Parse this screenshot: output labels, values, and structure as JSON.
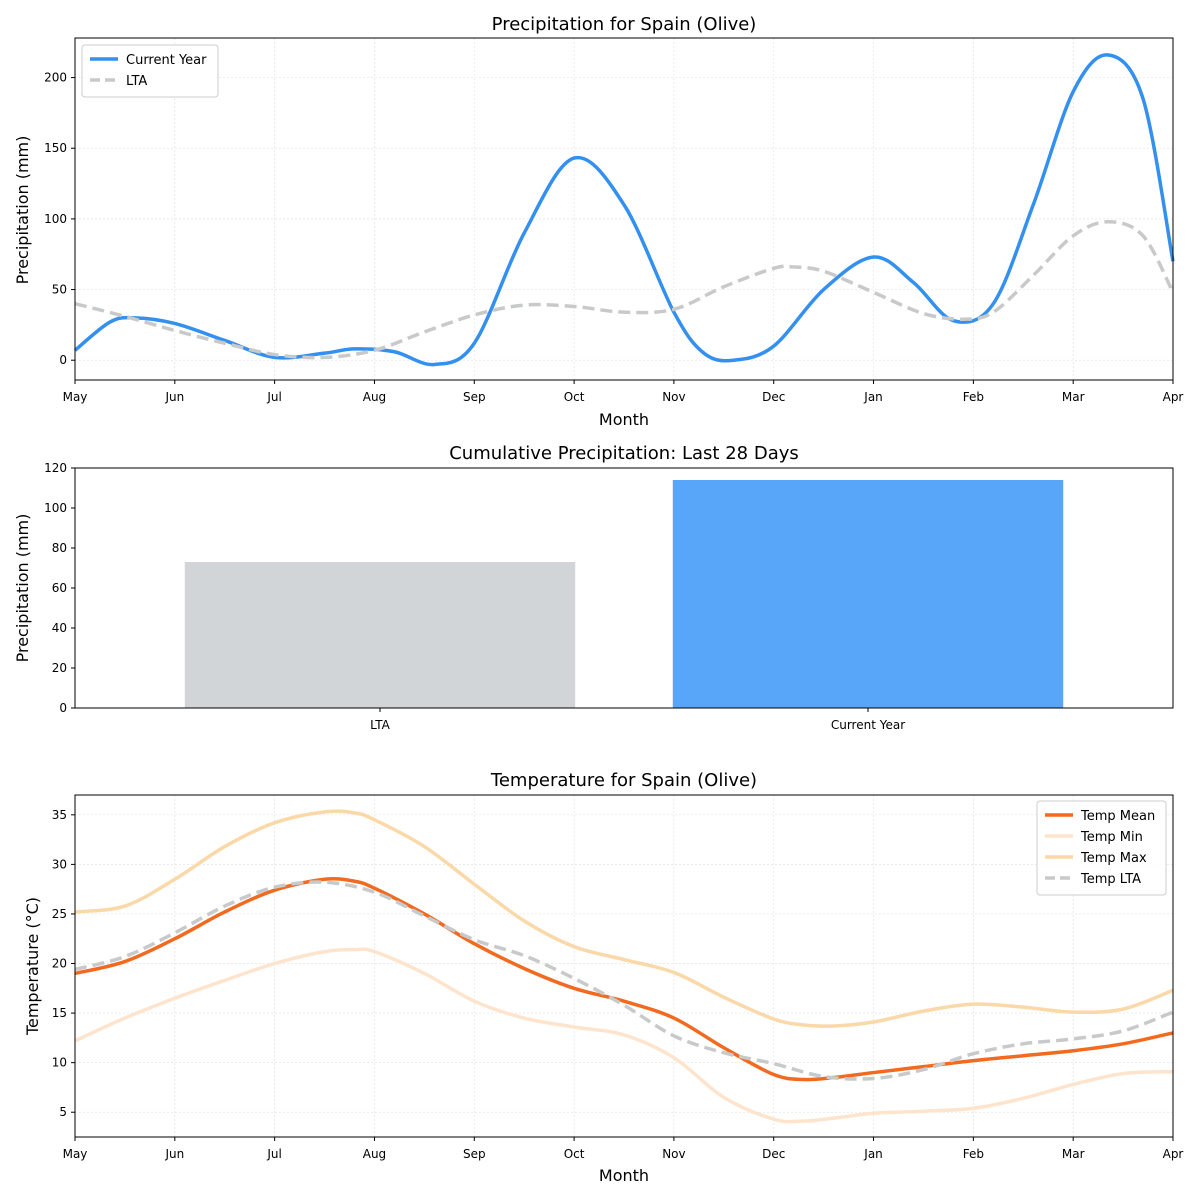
{
  "chart_data": [
    {
      "type": "line",
      "title": "Precipitation for Spain (Olive)",
      "xlabel": "Month",
      "ylabel": "Precipitation (mm)",
      "xticks": [
        "May",
        "Jun",
        "Jul",
        "Aug",
        "Sep",
        "Oct",
        "Nov",
        "Dec",
        "Jan",
        "Feb",
        "Mar",
        "Apr"
      ],
      "ylim": [
        -14,
        228
      ],
      "yticks": [
        0,
        50,
        100,
        150,
        200
      ],
      "grid": true,
      "legend_position": "upper-left",
      "series": [
        {
          "name": "Current Year",
          "color": "#3390ee",
          "style": "solid",
          "x": [
            0,
            0.35,
            0.6,
            1.0,
            1.5,
            2.0,
            2.5,
            2.8,
            3.2,
            3.6,
            4.0,
            4.5,
            5.0,
            5.5,
            6.0,
            6.3,
            6.6,
            7.0,
            7.5,
            8.0,
            8.4,
            8.8,
            9.2,
            9.6,
            10.0,
            10.35,
            10.7,
            11.0
          ],
          "y": [
            7,
            27,
            30,
            26,
            14,
            2,
            5,
            8,
            6,
            -3,
            12,
            90,
            143,
            110,
            34,
            5,
            0,
            10,
            50,
            73,
            55,
            28,
            40,
            110,
            190,
            216,
            185,
            70
          ]
        },
        {
          "name": "LTA",
          "color": "#c8c9ca",
          "style": "dashed",
          "x": [
            0,
            0.5,
            1.0,
            1.5,
            2.0,
            2.5,
            3.0,
            3.5,
            4.0,
            4.5,
            5.0,
            5.5,
            6.0,
            6.5,
            7.0,
            7.2,
            7.5,
            8.0,
            8.5,
            8.9,
            9.2,
            9.6,
            10.0,
            10.35,
            10.7,
            11.0
          ],
          "y": [
            40,
            31,
            21,
            12,
            4,
            2,
            7,
            20,
            32,
            39,
            38,
            34,
            36,
            52,
            65,
            66,
            63,
            48,
            33,
            29,
            34,
            60,
            88,
            98,
            88,
            48
          ]
        }
      ]
    },
    {
      "type": "bar",
      "title": "Cumulative Precipitation: Last 28 Days",
      "xlabel": "",
      "ylabel": "Precipitation (mm)",
      "categories": [
        "LTA",
        "Current Year"
      ],
      "values": [
        73,
        114
      ],
      "colors": [
        "#d1d5d8",
        "#58a6f9"
      ],
      "ylim": [
        0,
        120
      ],
      "yticks": [
        0,
        20,
        40,
        60,
        80,
        100,
        120
      ],
      "grid": false
    },
    {
      "type": "line",
      "title": "Temperature for Spain (Olive)",
      "xlabel": "Month",
      "ylabel": "Temperature (°C)",
      "xticks": [
        "May",
        "Jun",
        "Jul",
        "Aug",
        "Sep",
        "Oct",
        "Nov",
        "Dec",
        "Jan",
        "Feb",
        "Mar",
        "Apr"
      ],
      "ylim": [
        2.5,
        37
      ],
      "yticks": [
        5,
        10,
        15,
        20,
        25,
        30,
        35
      ],
      "grid": true,
      "legend_position": "upper-right",
      "series": [
        {
          "name": "Temp Mean",
          "color": "#f26a1f",
          "style": "solid",
          "x": [
            0,
            0.5,
            1.0,
            1.5,
            2.0,
            2.5,
            2.8,
            3.0,
            3.5,
            4.0,
            4.5,
            5.0,
            5.5,
            6.0,
            6.5,
            7.0,
            7.3,
            7.6,
            8.0,
            8.5,
            9.0,
            9.5,
            10.0,
            10.5,
            11.0
          ],
          "y": [
            19,
            20.2,
            22.5,
            25.2,
            27.4,
            28.5,
            28.3,
            27.6,
            25,
            22,
            19.5,
            17.5,
            16.2,
            14.5,
            11.5,
            8.8,
            8.3,
            8.5,
            9.0,
            9.6,
            10.2,
            10.7,
            11.2,
            11.9,
            13
          ]
        },
        {
          "name": "Temp Min",
          "color": "#fee4cc",
          "style": "solid",
          "x": [
            0,
            0.5,
            1.0,
            1.5,
            2.0,
            2.5,
            2.8,
            3.0,
            3.5,
            4.0,
            4.5,
            5.0,
            5.5,
            6.0,
            6.5,
            7.0,
            7.3,
            7.6,
            8.0,
            8.5,
            9.0,
            9.5,
            10.0,
            10.5,
            11.0
          ],
          "y": [
            12.2,
            14.5,
            16.5,
            18.3,
            20,
            21.2,
            21.4,
            21.2,
            19,
            16.2,
            14.5,
            13.6,
            12.8,
            10.5,
            6.5,
            4.3,
            4.1,
            4.4,
            4.9,
            5.1,
            5.4,
            6.4,
            7.8,
            8.9,
            9.1
          ]
        },
        {
          "name": "Temp Max",
          "color": "#fad8a8",
          "style": "solid",
          "x": [
            0,
            0.5,
            1.0,
            1.5,
            2.0,
            2.5,
            2.8,
            3.0,
            3.5,
            4.0,
            4.5,
            5.0,
            5.5,
            6.0,
            6.5,
            7.0,
            7.3,
            7.6,
            8.0,
            8.5,
            9.0,
            9.5,
            10.0,
            10.5,
            11.0
          ],
          "y": [
            25.2,
            25.8,
            28.5,
            31.8,
            34.2,
            35.3,
            35.2,
            34.5,
            31.8,
            28,
            24.3,
            21.7,
            20.4,
            19.1,
            16.6,
            14.4,
            13.8,
            13.7,
            14.1,
            15.2,
            15.9,
            15.6,
            15.1,
            15.4,
            17.3
          ]
        },
        {
          "name": "Temp LTA",
          "color": "#c8c9ca",
          "style": "dashed",
          "x": [
            0,
            0.5,
            1.0,
            1.5,
            2.0,
            2.5,
            3.0,
            3.5,
            4.0,
            4.5,
            5.0,
            5.5,
            6.0,
            6.5,
            7.0,
            7.5,
            8.0,
            8.5,
            9.0,
            9.5,
            10.0,
            10.5,
            11.0
          ],
          "y": [
            19.4,
            20.7,
            23.1,
            25.8,
            27.7,
            28.2,
            27.2,
            24.8,
            22.4,
            20.8,
            18.5,
            15.8,
            12.7,
            11,
            9.9,
            8.6,
            8.4,
            9.3,
            10.9,
            11.9,
            12.4,
            13.2,
            15.1
          ]
        }
      ]
    }
  ]
}
